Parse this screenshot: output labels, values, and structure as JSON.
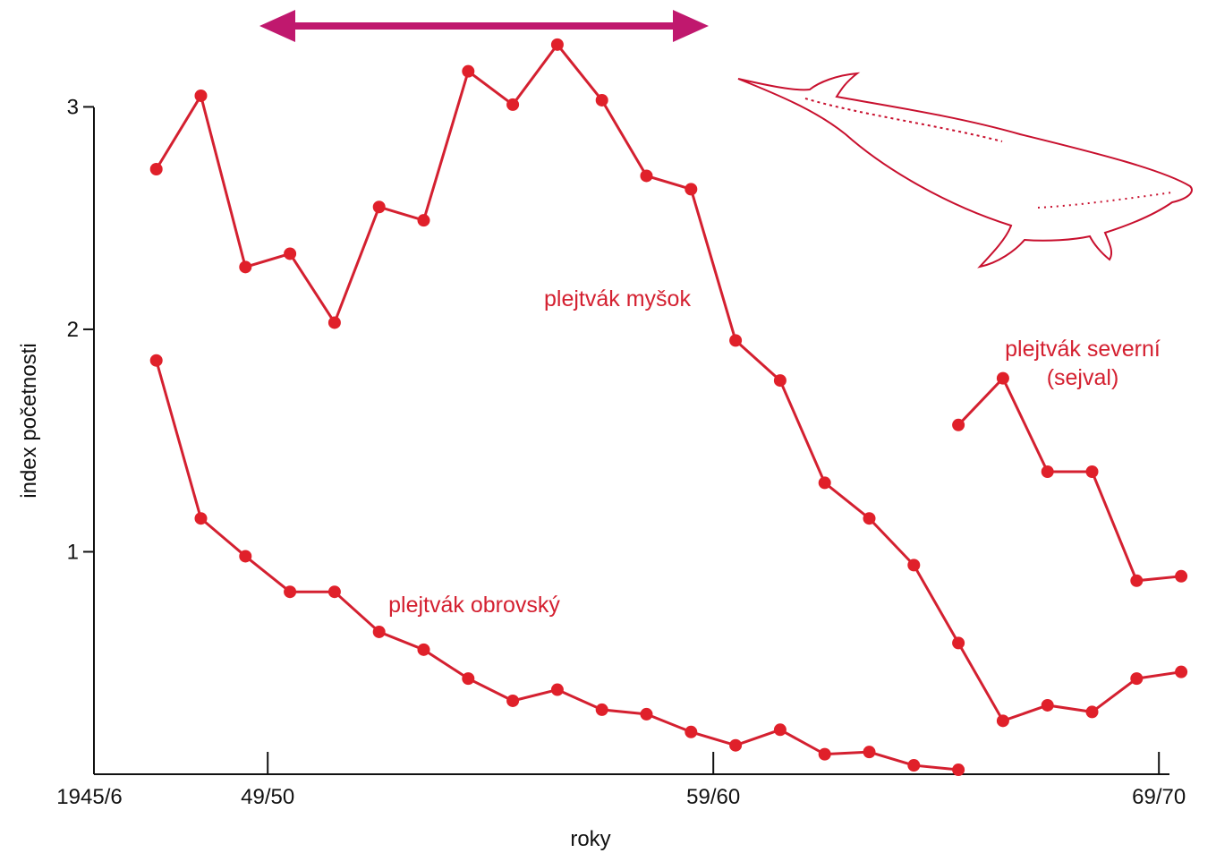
{
  "chart_data": {
    "type": "line",
    "x_label": "roky",
    "y_label": "index početnosti",
    "x": [
      1946.5,
      1947.5,
      1948.5,
      1949.5,
      1950.5,
      1951.5,
      1952.5,
      1953.5,
      1954.5,
      1955.5,
      1956.5,
      1957.5,
      1958.5,
      1959.5,
      1960.5,
      1961.5,
      1962.5,
      1963.5,
      1964.5,
      1965.5,
      1966.5,
      1967.5,
      1968.5,
      1969.5
    ],
    "xlim": [
      1945,
      1970
    ],
    "xticks": [
      {
        "value": 1945,
        "label": "1945/6"
      },
      {
        "value": 1949,
        "label": "49/50"
      },
      {
        "value": 1959,
        "label": "59/60"
      },
      {
        "value": 1969,
        "label": "69/70"
      }
    ],
    "ylim": [
      0,
      3.4
    ],
    "yticks": [
      1,
      2,
      3
    ],
    "series": [
      {
        "name": "plejtvák myšok",
        "color": "#d42030",
        "values": [
          2.72,
          3.05,
          2.28,
          2.34,
          2.03,
          2.55,
          2.49,
          3.16,
          3.01,
          3.28,
          3.03,
          2.69,
          2.63,
          1.95,
          1.77,
          1.31,
          1.15,
          0.94,
          0.59,
          0.24,
          0.31,
          0.28,
          0.43,
          0.46
        ]
      },
      {
        "name": "plejtvák obrovský",
        "color": "#d42030",
        "values": [
          1.86,
          1.15,
          0.98,
          0.82,
          0.82,
          0.64,
          0.56,
          0.43,
          0.33,
          0.38,
          0.29,
          0.27,
          0.19,
          0.13,
          0.2,
          0.09,
          0.1,
          0.04,
          0.02,
          null,
          null,
          null,
          null,
          null
        ]
      },
      {
        "name": "plejtvák severní (sejval)",
        "color": "#d42030",
        "values": [
          null,
          null,
          null,
          null,
          null,
          null,
          null,
          null,
          null,
          null,
          null,
          null,
          null,
          null,
          null,
          null,
          null,
          null,
          1.57,
          1.78,
          1.36,
          1.36,
          0.87,
          0.89
        ]
      }
    ]
  }
}
